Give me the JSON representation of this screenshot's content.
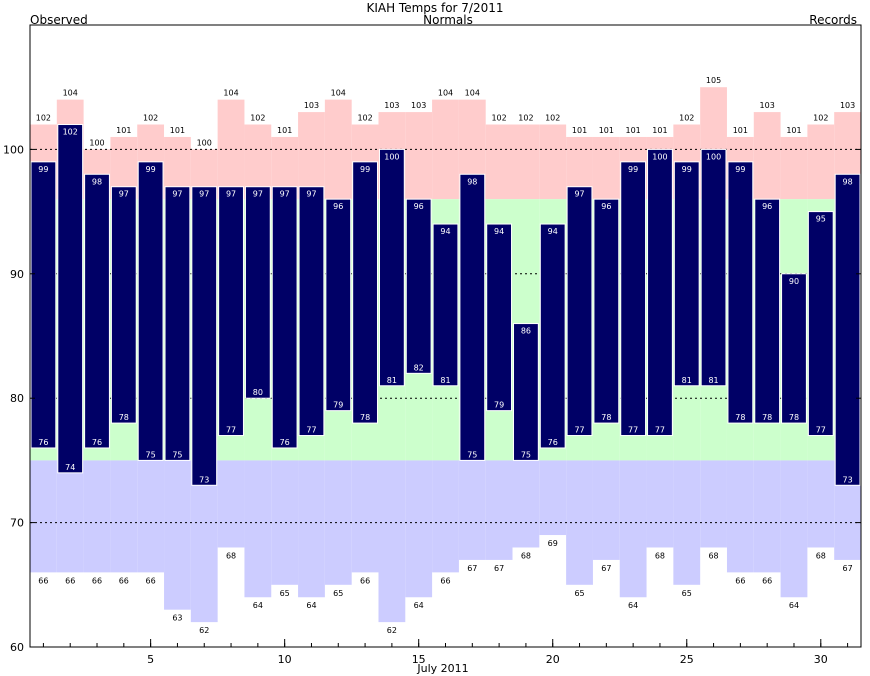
{
  "chart_data": {
    "type": "bar",
    "title": "KIAH Temps for 7/2011",
    "subtitle": "Normals",
    "legend": {
      "observed": "Observed",
      "records": "Records"
    },
    "xlabel": "July 2011",
    "ylabel": "",
    "ylim": [
      60,
      110
    ],
    "yticks": [
      60,
      70,
      80,
      90,
      100
    ],
    "xticks": [
      5,
      10,
      15,
      20,
      25,
      30
    ],
    "grid": true,
    "days": [
      1,
      2,
      3,
      4,
      5,
      6,
      7,
      8,
      9,
      10,
      11,
      12,
      13,
      14,
      15,
      16,
      17,
      18,
      19,
      20,
      21,
      22,
      23,
      24,
      25,
      26,
      27,
      28,
      29,
      30,
      31
    ],
    "series": [
      {
        "name": "Records",
        "key": "record_high",
        "values": [
          102,
          104,
          100,
          101,
          102,
          101,
          100,
          104,
          102,
          101,
          103,
          104,
          102,
          103,
          103,
          104,
          104,
          102,
          102,
          102,
          101,
          101,
          101,
          101,
          102,
          105,
          101,
          103,
          101,
          102,
          103
        ]
      },
      {
        "name": "Records",
        "key": "record_low",
        "values": [
          66,
          66,
          66,
          66,
          66,
          63,
          62,
          68,
          64,
          65,
          64,
          65,
          66,
          62,
          64,
          66,
          67,
          67,
          68,
          69,
          65,
          67,
          64,
          68,
          65,
          68,
          66,
          66,
          64,
          68,
          67
        ]
      },
      {
        "name": "Observed",
        "key": "observed_high",
        "values": [
          99,
          102,
          98,
          97,
          99,
          97,
          97,
          97,
          97,
          97,
          97,
          96,
          99,
          100,
          96,
          94,
          98,
          94,
          86,
          94,
          97,
          96,
          99,
          100,
          99,
          100,
          99,
          96,
          90,
          95,
          98
        ]
      },
      {
        "name": "Observed",
        "key": "observed_low",
        "values": [
          76,
          74,
          76,
          78,
          75,
          75,
          73,
          77,
          80,
          76,
          77,
          79,
          78,
          81,
          82,
          81,
          75,
          79,
          75,
          76,
          77,
          78,
          77,
          77,
          81,
          81,
          78,
          78,
          78,
          77,
          73
        ]
      },
      {
        "name": "Normals",
        "key": "normal_high",
        "values": [
          96,
          96,
          96,
          96,
          96,
          96,
          96,
          96,
          96,
          96,
          96,
          96,
          96,
          96,
          96,
          96,
          96,
          96,
          96,
          96,
          96,
          96,
          96,
          96,
          96,
          96,
          96,
          96,
          96,
          96,
          96
        ]
      },
      {
        "name": "Normals",
        "key": "normal_low",
        "values": [
          75,
          75,
          75,
          75,
          75,
          75,
          75,
          75,
          75,
          75,
          75,
          75,
          75,
          75,
          75,
          75,
          75,
          75,
          75,
          75,
          75,
          75,
          75,
          75,
          75,
          75,
          75,
          75,
          75,
          75,
          75
        ]
      }
    ],
    "colors": {
      "record_band": "#ffcccc",
      "normal_band": "#ccffcc",
      "below_normal_band": "#ccccff",
      "observed_bar": "#000066",
      "observed_outline": "#ffffff",
      "grid": "#000000",
      "legend_observed": "#000066",
      "legend_normals": "#006600",
      "legend_records": "#9966cc"
    }
  }
}
